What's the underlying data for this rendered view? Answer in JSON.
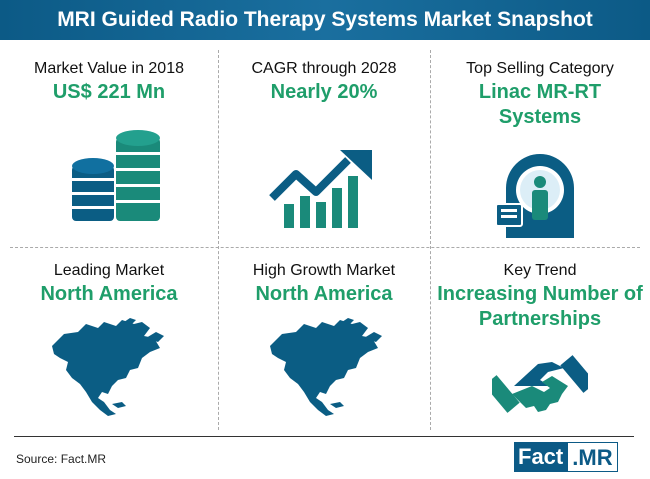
{
  "title": "MRI Guided Radio Therapy Systems Market Snapshot",
  "cells": [
    {
      "label": "Market Value in 2018",
      "value": "US$ 221 Mn",
      "icon": "coins-stack-icon"
    },
    {
      "label": "CAGR through 2028",
      "value": "Nearly 20%",
      "icon": "growth-chart-icon"
    },
    {
      "label": "Top Selling Category",
      "value_line1": "Linac MR-RT",
      "value_line2": "Systems",
      "icon": "mri-machine-icon"
    },
    {
      "label": "Leading Market",
      "value": "North America",
      "icon": "north-america-map-icon"
    },
    {
      "label": "High Growth Market",
      "value": "North America",
      "icon": "north-america-map-icon"
    },
    {
      "label": "Key Trend",
      "value_line1": "Increasing Number of",
      "value_line2": "Partnerships",
      "icon": "handshake-icon"
    }
  ],
  "source": "Source: Fact.MR",
  "logo": {
    "left": "Fact",
    "right": ".MR"
  },
  "colors": {
    "brand_blue": "#0c5a86",
    "accent_green": "#1f9e6a",
    "icon_teal": "#1a8a7a"
  }
}
